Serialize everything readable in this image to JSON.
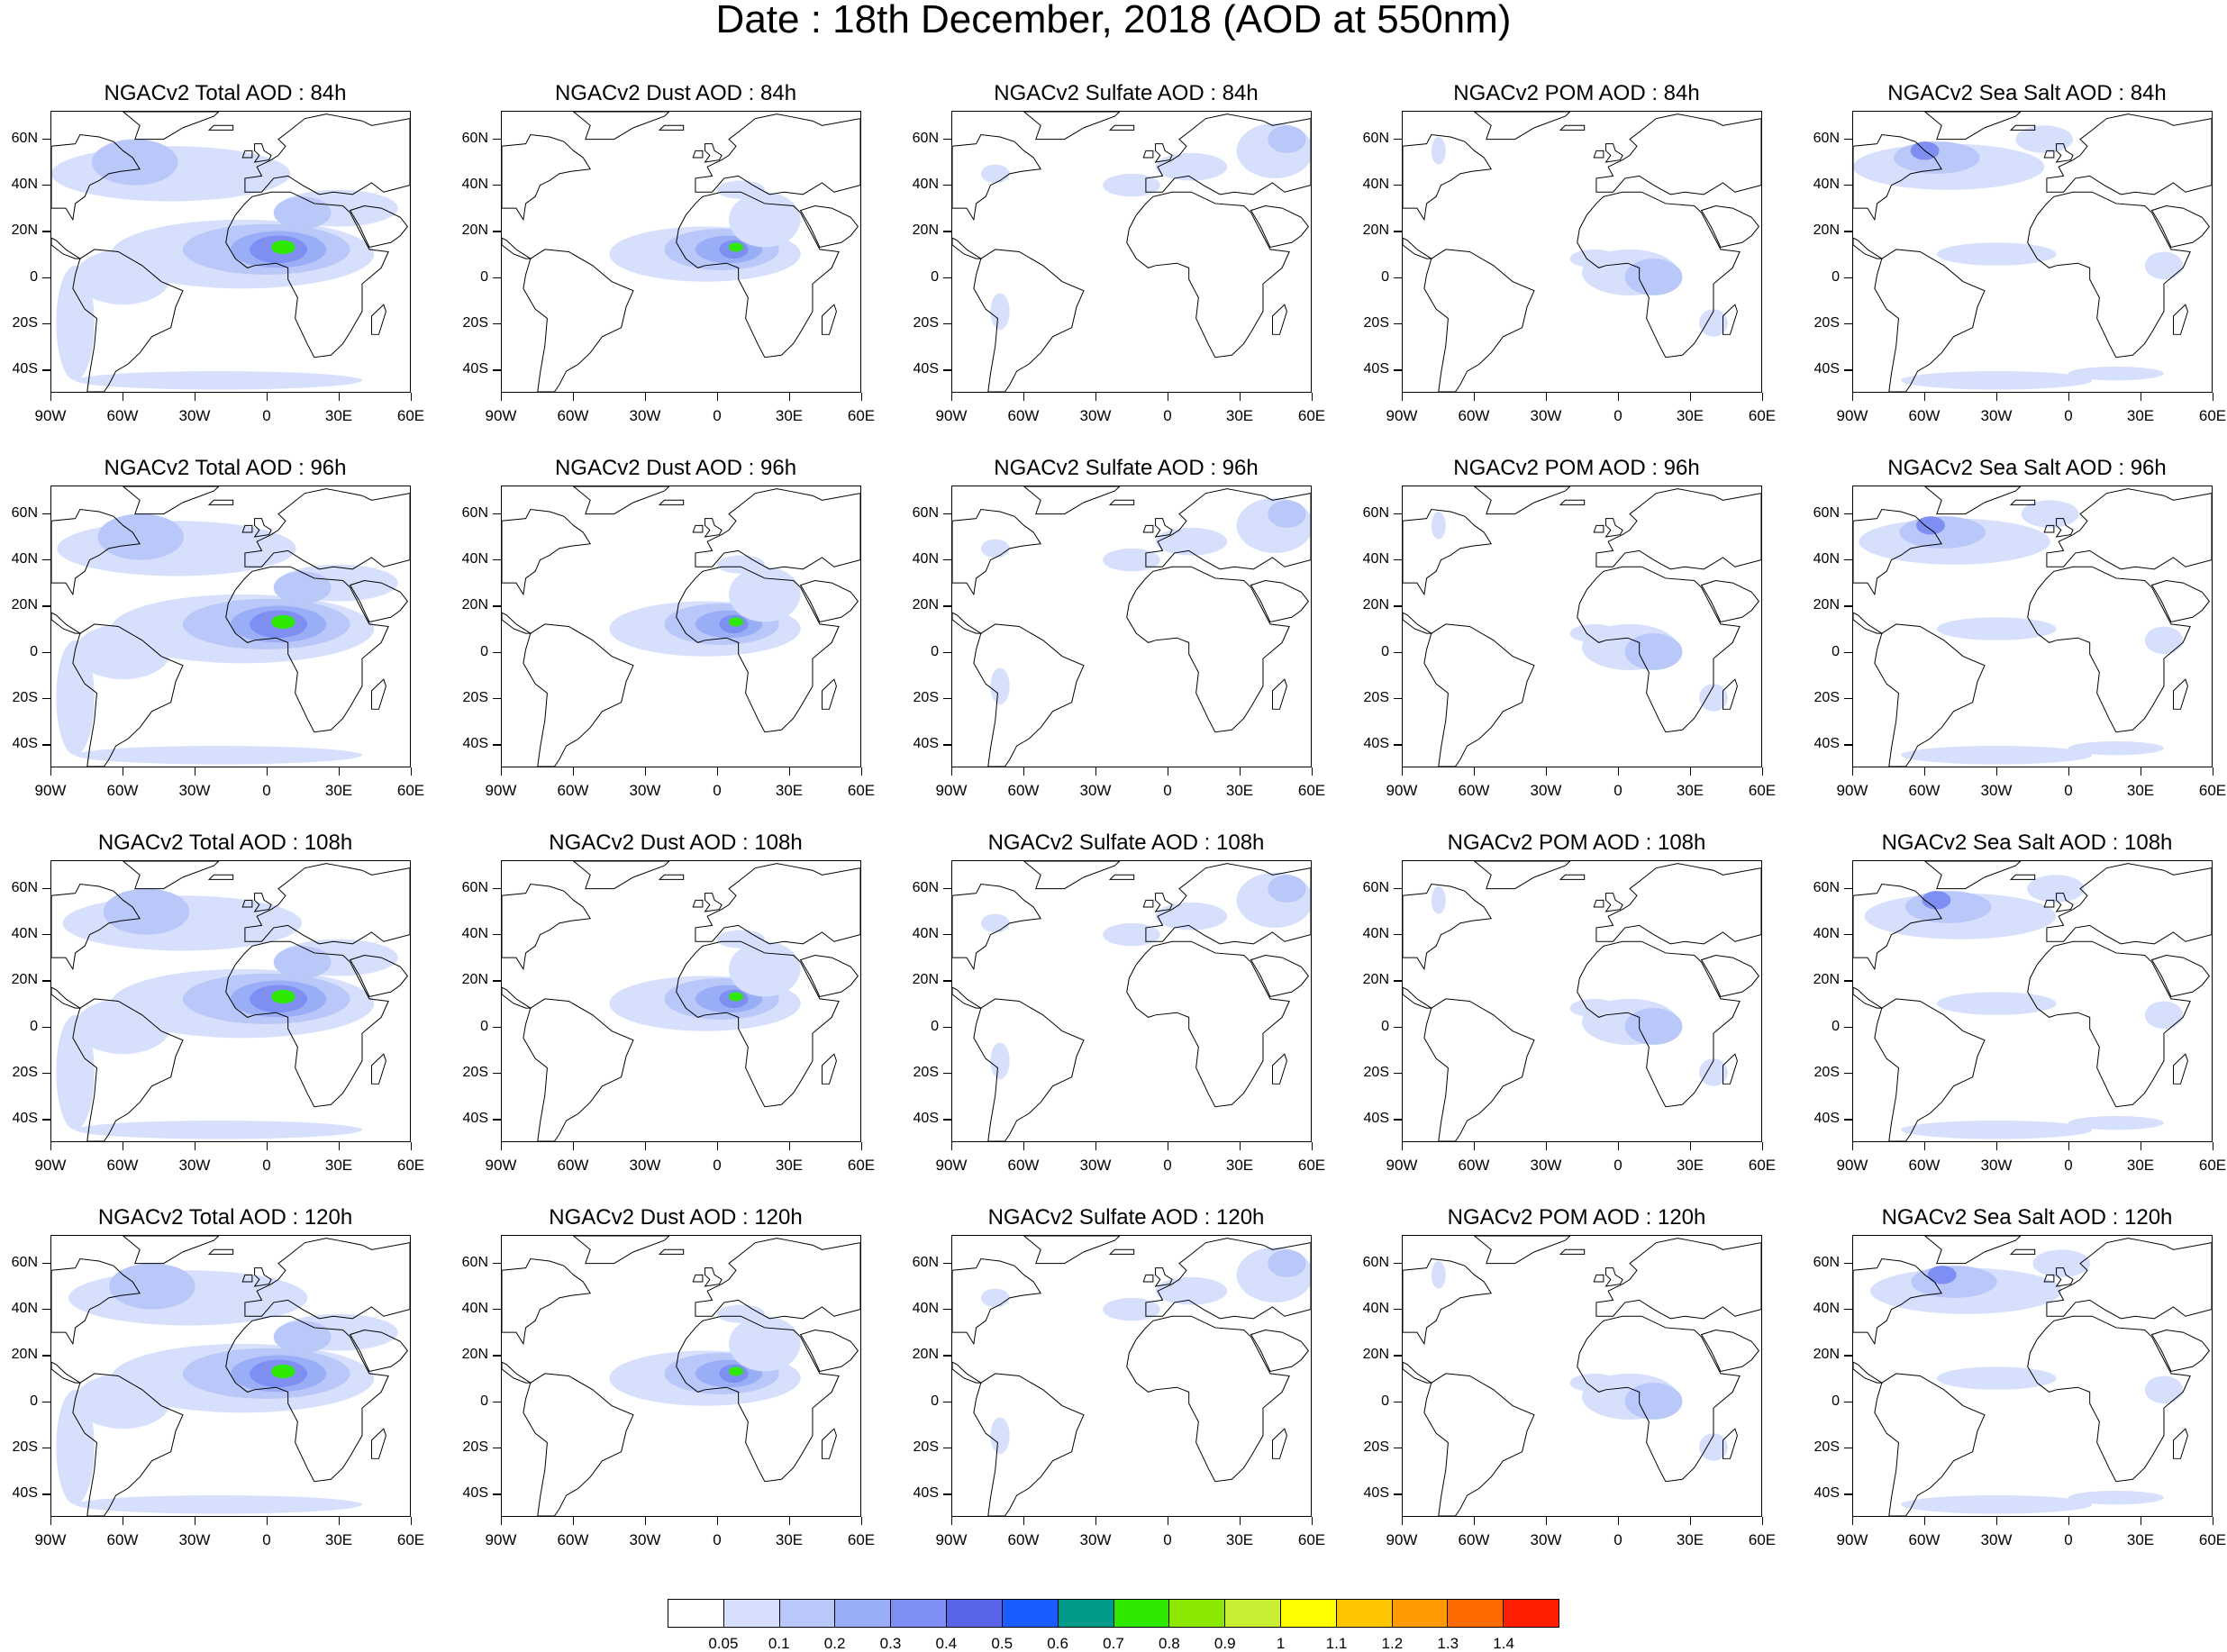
{
  "title": "Date : 18th December, 2018 (AOD at 550nm)",
  "lat_ticks": [
    "60N",
    "40N",
    "20N",
    "0",
    "20S",
    "40S"
  ],
  "lon_ticks": [
    "90W",
    "60W",
    "30W",
    "0",
    "30E",
    "60E"
  ],
  "panels": [
    [
      "NGACv2 Total AOD : 84h",
      "NGACv2 Dust AOD : 84h",
      "NGACv2 Sulfate AOD : 84h",
      "NGACv2 POM AOD : 84h",
      "NGACv2 Sea Salt AOD : 84h"
    ],
    [
      "NGACv2 Total AOD : 96h",
      "NGACv2 Dust AOD : 96h",
      "NGACv2 Sulfate AOD : 96h",
      "NGACv2 POM AOD : 96h",
      "NGACv2 Sea Salt AOD : 96h"
    ],
    [
      "NGACv2 Total AOD : 108h",
      "NGACv2 Dust AOD : 108h",
      "NGACv2 Sulfate AOD : 108h",
      "NGACv2 POM AOD : 108h",
      "NGACv2 Sea Salt AOD : 108h"
    ],
    [
      "NGACv2 Total AOD : 120h",
      "NGACv2 Dust AOD : 120h",
      "NGACv2 Sulfate AOD : 120h",
      "NGACv2 POM AOD : 120h",
      "NGACv2 Sea Salt  AOD : 120h"
    ]
  ],
  "colorbar": {
    "labels": [
      "0.05",
      "0.1",
      "0.2",
      "0.3",
      "0.4",
      "0.5",
      "0.6",
      "0.7",
      "0.8",
      "0.9",
      "1",
      "1.1",
      "1.2",
      "1.3",
      "1.4"
    ],
    "colors": [
      "#ffffff",
      "#d6e0fc",
      "#b9c7f9",
      "#99aef7",
      "#7f8ef3",
      "#5a64ea",
      "#1a5cff",
      "#009a8a",
      "#2ee800",
      "#8ce800",
      "#c8ef32",
      "#ffff00",
      "#ffc600",
      "#ff9b00",
      "#ff6a00",
      "#ff1f00"
    ]
  }
}
